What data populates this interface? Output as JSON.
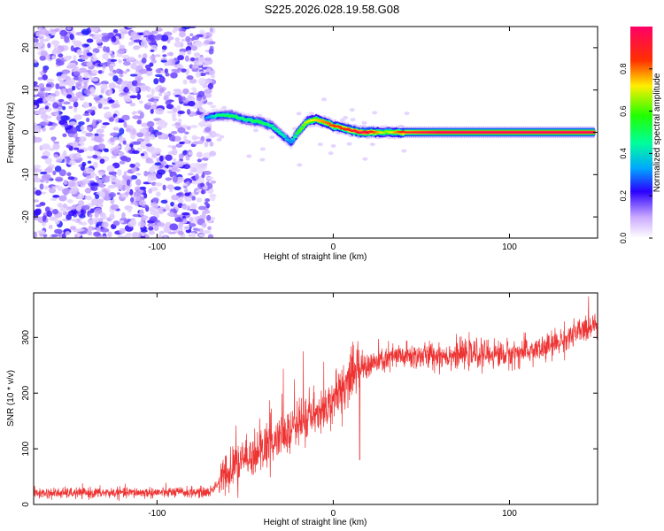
{
  "title": "S225.2026.028.19.58.G08",
  "chart_data": [
    {
      "type": "heatmap",
      "name": "spectrogram",
      "xlabel": "Height of straight line (km)",
      "ylabel": "Frequency (Hz)",
      "xlim": [
        -170,
        150
      ],
      "ylim": [
        -25,
        25
      ],
      "xticks": [
        -100,
        0,
        100
      ],
      "yticks": [
        -20,
        -10,
        0,
        10,
        20
      ],
      "colorbar": {
        "label": "Normalized spectral amplitude",
        "range": [
          0,
          1
        ],
        "ticks": [
          0.0,
          0.2,
          0.4,
          0.6,
          0.8
        ]
      },
      "noise_region_x": [
        -170,
        -65
      ],
      "signal_track": {
        "x": [
          -72,
          -65,
          -58,
          -50,
          -42,
          -35,
          -28,
          -24,
          -20,
          -15,
          -10,
          -5,
          0,
          5,
          10,
          15,
          20,
          30,
          40,
          60,
          80,
          100,
          120,
          148
        ],
        "freq": [
          3.5,
          4,
          4,
          3,
          2.5,
          1.5,
          -1,
          -2.5,
          0,
          2.5,
          3,
          2.5,
          1.5,
          1,
          0.5,
          0,
          0,
          0,
          0,
          0,
          0,
          0,
          0,
          0
        ],
        "amplitude": [
          0.3,
          0.45,
          0.5,
          0.45,
          0.5,
          0.45,
          0.4,
          0.3,
          0.55,
          0.65,
          0.7,
          0.75,
          0.8,
          0.8,
          0.85,
          0.9,
          0.9,
          0.6,
          0.85,
          0.95,
          0.95,
          0.95,
          0.95,
          0.95
        ]
      }
    },
    {
      "type": "line",
      "name": "snr",
      "xlabel": "Height of straight line (km)",
      "ylabel": "SNR (10 * v/v)",
      "xlim": [
        -170,
        150
      ],
      "ylim": [
        0,
        380
      ],
      "xticks": [
        -100,
        0,
        100
      ],
      "yticks": [
        0,
        100,
        200,
        300
      ],
      "color": "#ee3333",
      "trend": {
        "x": [
          -170,
          -70,
          -65,
          -55,
          -45,
          -35,
          -25,
          -15,
          -5,
          5,
          10,
          15,
          25,
          35,
          60,
          80,
          100,
          120,
          130,
          140,
          150
        ],
        "y": [
          20,
          22,
          40,
          70,
          90,
          110,
          130,
          150,
          175,
          210,
          230,
          245,
          255,
          265,
          268,
          270,
          270,
          280,
          295,
          310,
          330
        ]
      },
      "spikes": [
        {
          "x": -17,
          "y": 275
        },
        {
          "x": -22,
          "y": 225
        },
        {
          "x": 15,
          "y": 80
        },
        {
          "x": 5,
          "y": 140
        }
      ]
    }
  ]
}
